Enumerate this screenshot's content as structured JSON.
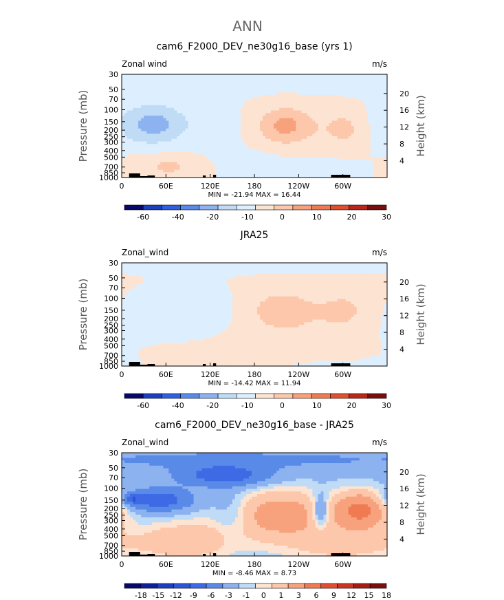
{
  "figure_title": "ANN",
  "chart_data": [
    {
      "type": "heatmap",
      "title": "cam6_F2000_DEV_ne30g16_base (yrs 1)",
      "left_label": "Zonal wind",
      "right_label": "m/s",
      "ylabel": "Pressure (mb)",
      "ylabel_right": "Height (km)",
      "y_ticks": [
        "30",
        "50",
        "70",
        "100",
        "150",
        "200",
        "250",
        "300",
        "400",
        "500",
        "700",
        "850",
        "1000"
      ],
      "height_ticks": [
        "20",
        "16",
        "12",
        "8",
        "4"
      ],
      "x_ticks": [
        "0",
        "60E",
        "120E",
        "180",
        "120W",
        "60W"
      ],
      "stats": "MIN = -21.94  MAX =  16.44",
      "colorbar_labels": [
        "-60",
        "-40",
        "-20",
        "-10",
        "0",
        "10",
        "20",
        "30"
      ],
      "colorbar_colors": [
        "#08086b",
        "#1c3fbf",
        "#3060e0",
        "#5a8ae8",
        "#8cb2f0",
        "#c0dbf5",
        "#ddefff",
        "#fde4d2",
        "#fcc7aa",
        "#f7a27c",
        "#f07a52",
        "#e04f2f",
        "#b8281a",
        "#7a0e0e"
      ],
      "grid": false,
      "field": {
        "bg": 0,
        "blobs": [
          {
            "lon": 185,
            "p": 35,
            "dlon": 200,
            "dp": 0.4,
            "amp": -4
          },
          {
            "lon": 40,
            "p": 170,
            "dlon": 40,
            "dp": 0.6,
            "amp": -15
          },
          {
            "lon": 45,
            "p": 160,
            "dlon": 25,
            "dp": 0.35,
            "amp": -10
          },
          {
            "lon": 225,
            "p": 175,
            "dlon": 35,
            "dp": 0.55,
            "amp": 14
          },
          {
            "lon": 220,
            "p": 170,
            "dlon": 20,
            "dp": 0.35,
            "amp": 10
          },
          {
            "lon": 305,
            "p": 190,
            "dlon": 22,
            "dp": 0.5,
            "amp": 12
          },
          {
            "lon": 135,
            "p": 190,
            "dlon": 25,
            "dp": 0.7,
            "amp": -4
          },
          {
            "lon": 55,
            "p": 650,
            "dlon": 40,
            "dp": 0.35,
            "amp": 8
          },
          {
            "lon": 65,
            "p": 700,
            "dlon": 15,
            "dp": 0.2,
            "amp": 6
          },
          {
            "lon": 280,
            "p": 720,
            "dlon": 45,
            "dp": 0.3,
            "amp": -3
          },
          {
            "lon": 190,
            "p": 650,
            "dlon": 35,
            "dp": 0.4,
            "amp": -4
          }
        ]
      }
    },
    {
      "type": "heatmap",
      "title": "JRA25",
      "left_label": "Zonal_wind",
      "right_label": "m/s",
      "ylabel": "Pressure (mb)",
      "ylabel_right": "Height (km)",
      "y_ticks": [
        "30",
        "50",
        "70",
        "100",
        "150",
        "200",
        "250",
        "300",
        "400",
        "500",
        "700",
        "850",
        "1000"
      ],
      "height_ticks": [
        "20",
        "16",
        "12",
        "8",
        "4"
      ],
      "x_ticks": [
        "0",
        "60E",
        "120E",
        "180",
        "120W",
        "60W"
      ],
      "stats": "MIN = -14.42  MAX =  11.94",
      "colorbar_labels": [
        "-60",
        "-40",
        "-20",
        "-10",
        "0",
        "10",
        "20",
        "30"
      ],
      "colorbar_colors": [
        "#08086b",
        "#1c3fbf",
        "#3060e0",
        "#5a8ae8",
        "#8cb2f0",
        "#c0dbf5",
        "#ddefff",
        "#fde4d2",
        "#fcc7aa",
        "#f7a27c",
        "#f07a52",
        "#e04f2f",
        "#b8281a",
        "#7a0e0e"
      ],
      "grid": false,
      "field": {
        "bg": 2,
        "blobs": [
          {
            "lon": 185,
            "p": 32,
            "dlon": 200,
            "dp": 0.25,
            "amp": -5
          },
          {
            "lon": 90,
            "p": 160,
            "dlon": 55,
            "dp": 0.7,
            "amp": -9
          },
          {
            "lon": 60,
            "p": 170,
            "dlon": 30,
            "dp": 0.4,
            "amp": -3
          },
          {
            "lon": 220,
            "p": 150,
            "dlon": 40,
            "dp": 0.55,
            "amp": 11
          },
          {
            "lon": 210,
            "p": 150,
            "dlon": 20,
            "dp": 0.3,
            "amp": 5
          },
          {
            "lon": 305,
            "p": 150,
            "dlon": 25,
            "dp": 0.5,
            "amp": 9
          },
          {
            "lon": 250,
            "p": 500,
            "dlon": 120,
            "dp": 0.6,
            "amp": 3
          },
          {
            "lon": 90,
            "p": 800,
            "dlon": 35,
            "dp": 0.25,
            "amp": 5
          },
          {
            "lon": 5,
            "p": 450,
            "dlon": 30,
            "dp": 0.7,
            "amp": -4
          },
          {
            "lon": 260,
            "p": 900,
            "dlon": 100,
            "dp": 0.2,
            "amp": -4
          }
        ]
      }
    },
    {
      "type": "heatmap",
      "title": "cam6_F2000_DEV_ne30g16_base - JRA25",
      "left_label": "Zonal_wind",
      "right_label": "m/s",
      "ylabel": "Pressure (mb)",
      "ylabel_right": "Height (km)",
      "y_ticks": [
        "30",
        "50",
        "70",
        "100",
        "150",
        "200",
        "250",
        "300",
        "400",
        "500",
        "700",
        "850",
        "1000"
      ],
      "height_ticks": [
        "20",
        "16",
        "12",
        "8",
        "4"
      ],
      "x_ticks": [
        "0",
        "60E",
        "120E",
        "180",
        "120W",
        "60W"
      ],
      "stats": "MIN =  -8.46  MAX =   8.73",
      "colorbar_labels": [
        "-18",
        "-15",
        "-12",
        "-9",
        "-6",
        "-3",
        "-1",
        "0",
        "1",
        "3",
        "6",
        "9",
        "12",
        "15",
        "18"
      ],
      "colorbar_colors": [
        "#08086b",
        "#0f1f9a",
        "#1c3fbf",
        "#2a55d6",
        "#3e6ae6",
        "#5a8ae8",
        "#8cb2f0",
        "#c0dbf5",
        "#fde4d2",
        "#fcc7aa",
        "#f7a27c",
        "#f07a52",
        "#e04f2f",
        "#c93520",
        "#a51d15",
        "#7a0e0e"
      ],
      "grid": false,
      "field": {
        "bg": -1.5,
        "blobs": [
          {
            "lon": 160,
            "p": 38,
            "dlon": 220,
            "dp": 0.25,
            "amp": -2
          },
          {
            "lon": 140,
            "p": 65,
            "dlon": 40,
            "dp": 0.25,
            "amp": -7
          },
          {
            "lon": 50,
            "p": 150,
            "dlon": 30,
            "dp": 0.25,
            "amp": -7
          },
          {
            "lon": 15,
            "p": 145,
            "dlon": 8,
            "dp": 0.12,
            "amp": -5
          },
          {
            "lon": 215,
            "p": 240,
            "dlon": 50,
            "dp": 0.6,
            "amp": 6
          },
          {
            "lon": 325,
            "p": 210,
            "dlon": 25,
            "dp": 0.45,
            "amp": 8
          },
          {
            "lon": 270,
            "p": 220,
            "dlon": 8,
            "dp": 0.4,
            "amp": -5
          },
          {
            "lon": 90,
            "p": 600,
            "dlon": 50,
            "dp": 0.5,
            "amp": 4
          },
          {
            "lon": 150,
            "p": 250,
            "dlon": 18,
            "dp": 0.6,
            "amp": -2
          },
          {
            "lon": 300,
            "p": 700,
            "dlon": 60,
            "dp": 0.5,
            "amp": 3
          }
        ]
      }
    }
  ]
}
